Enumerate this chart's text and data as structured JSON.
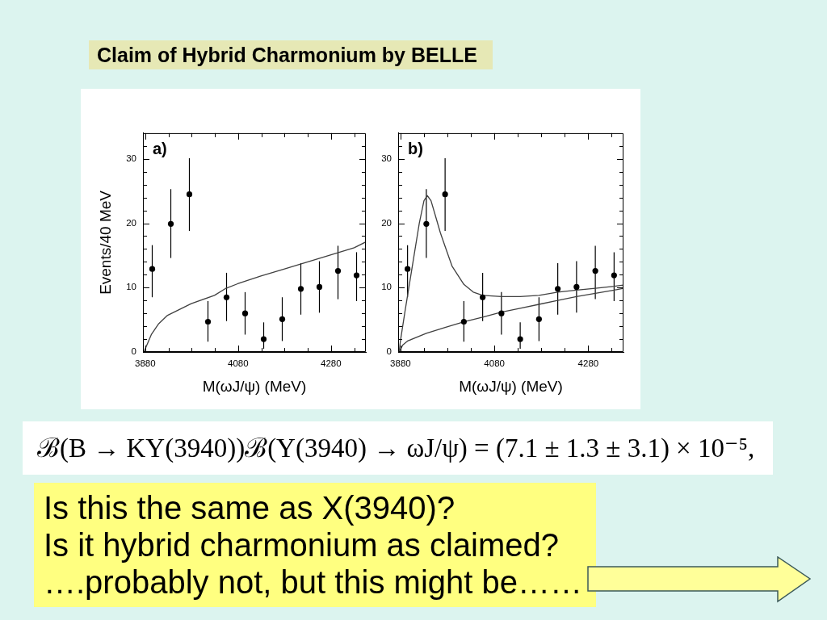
{
  "chart_data": [
    {
      "type": "scatter",
      "title": "Claim of Hybrid Charmonium by BELLE",
      "xlabel": "M(ωJ/ψ) (MeV)",
      "ylabel": "Events/40 MeV",
      "annotations": [
        "a)"
      ],
      "xlim": [
        3875,
        4355
      ],
      "ylim": [
        0,
        34
      ],
      "xticks": [
        3880,
        {
          "value": 3930,
          "label": null
        },
        {
          "value": 3980,
          "label": null
        },
        {
          "value": 4030,
          "label": null
        },
        4080,
        {
          "value": 4130,
          "label": null
        },
        {
          "value": 4180,
          "label": null
        },
        {
          "value": 4230,
          "label": null
        },
        4280,
        {
          "value": 4330,
          "label": null
        }
      ],
      "yticks": [
        0,
        {
          "value": 2,
          "label": null
        },
        {
          "value": 4,
          "label": null
        },
        {
          "value": 6,
          "label": null
        },
        {
          "value": 8,
          "label": null
        },
        10,
        {
          "value": 12,
          "label": null
        },
        {
          "value": 14,
          "label": null
        },
        {
          "value": 16,
          "label": null
        },
        {
          "value": 18,
          "label": null
        },
        20,
        {
          "value": 22,
          "label": null
        },
        {
          "value": 24,
          "label": null
        },
        {
          "value": 26,
          "label": null
        },
        {
          "value": 28,
          "label": null
        },
        30,
        {
          "value": 32,
          "label": null
        }
      ],
      "grid": false,
      "legend": false,
      "marker": "circle",
      "series": [
        {
          "type": "scatter",
          "color": "#000000",
          "x": [
            3895,
            3935,
            3975,
            4015,
            4055,
            4095,
            4135,
            4175,
            4215,
            4255,
            4295,
            4335
          ],
          "values": [
            12.9,
            19.9,
            24.5,
            4.7,
            8.5,
            6.0,
            2.0,
            5.1,
            9.8,
            10.1,
            12.6,
            11.9
          ],
          "errors": [
            [
              8.5,
              16.6
            ],
            [
              14.6,
              25.3
            ],
            [
              18.8,
              30.1
            ],
            [
              1.6,
              7.9
            ],
            [
              4.8,
              12.3
            ],
            [
              2.7,
              9.3
            ],
            [
              0.5,
              4.6
            ],
            [
              1.7,
              8.5
            ],
            [
              5.8,
              13.8
            ],
            [
              6.1,
              14.1
            ],
            [
              8.2,
              16.5
            ],
            [
              7.9,
              15.5
            ]
          ]
        },
        {
          "type": "line",
          "color": "#404040",
          "marker": "none",
          "x": [
            3877,
            3886,
            3893,
            3909,
            3928,
            3979,
            4029,
            4054,
            4079,
            4129,
            4180,
            4230,
            4280,
            4330,
            4355
          ],
          "values": [
            0,
            1.5,
            2.7,
            4.4,
            5.7,
            7.5,
            8.8,
            9.9,
            10.6,
            11.8,
            12.9,
            14.0,
            15.1,
            16.2,
            17.1
          ]
        }
      ]
    },
    {
      "type": "scatter",
      "xlabel": "M(ωJ/ψ) (MeV)",
      "annotations": [
        "b)"
      ],
      "xlim": [
        3875,
        4355
      ],
      "ylim": [
        0,
        34
      ],
      "xticks": [
        3880,
        {
          "value": 3930,
          "label": null
        },
        {
          "value": 3980,
          "label": null
        },
        {
          "value": 4030,
          "label": null
        },
        4080,
        {
          "value": 4130,
          "label": null
        },
        {
          "value": 4180,
          "label": null
        },
        {
          "value": 4230,
          "label": null
        },
        4280,
        {
          "value": 4330,
          "label": null
        }
      ],
      "yticks": [
        0,
        {
          "value": 2,
          "label": null
        },
        {
          "value": 4,
          "label": null
        },
        {
          "value": 6,
          "label": null
        },
        {
          "value": 8,
          "label": null
        },
        10,
        {
          "value": 12,
          "label": null
        },
        {
          "value": 14,
          "label": null
        },
        {
          "value": 16,
          "label": null
        },
        {
          "value": 18,
          "label": null
        },
        20,
        {
          "value": 22,
          "label": null
        },
        {
          "value": 24,
          "label": null
        },
        {
          "value": 26,
          "label": null
        },
        {
          "value": 28,
          "label": null
        },
        30,
        {
          "value": 32,
          "label": null
        }
      ],
      "grid": false,
      "legend": false,
      "marker": "circle",
      "series": [
        {
          "type": "scatter",
          "color": "#000000",
          "x": [
            3895,
            3935,
            3975,
            4015,
            4055,
            4095,
            4135,
            4175,
            4215,
            4255,
            4295,
            4335
          ],
          "values": [
            12.9,
            19.9,
            24.5,
            4.7,
            8.5,
            6.0,
            2.0,
            5.1,
            9.8,
            10.1,
            12.6,
            11.9
          ],
          "errors": [
            [
              8.5,
              16.6
            ],
            [
              14.6,
              25.3
            ],
            [
              18.8,
              30.1
            ],
            [
              1.6,
              7.9
            ],
            [
              4.8,
              12.3
            ],
            [
              2.7,
              9.3
            ],
            [
              0.5,
              4.6
            ],
            [
              1.7,
              8.5
            ],
            [
              5.8,
              13.8
            ],
            [
              6.1,
              14.1
            ],
            [
              8.2,
              16.5
            ],
            [
              7.9,
              15.5
            ]
          ]
        },
        {
          "type": "line",
          "color": "#404040",
          "marker": "none",
          "x": [
            3877,
            3880,
            3890,
            3900,
            3910,
            3920,
            3930,
            3937,
            3945,
            3955,
            3965,
            3975,
            3990,
            4015,
            4035,
            4055,
            4095,
            4135,
            4175,
            4215,
            4255,
            4295,
            4335,
            4355
          ],
          "values": [
            0,
            1.8,
            6.5,
            11,
            15.5,
            20,
            23.5,
            24.3,
            23.5,
            21,
            18.5,
            16.4,
            13.3,
            10.5,
            9.3,
            8.8,
            8.6,
            8.6,
            8.8,
            9.3,
            9.6,
            9.9,
            10.2,
            10.4
          ]
        },
        {
          "type": "line",
          "color": "#404040",
          "marker": "none",
          "x": [
            3877,
            3885,
            3895,
            3935,
            3975,
            4015,
            4055,
            4095,
            4135,
            4175,
            4215,
            4255,
            4295,
            4335,
            4355
          ],
          "values": [
            0,
            1.1,
            1.7,
            2.9,
            3.8,
            4.7,
            5.4,
            6.2,
            6.8,
            7.4,
            8.0,
            8.6,
            9.1,
            9.6,
            9.9
          ]
        }
      ]
    },
    {
      "type": "other",
      "annotations": [
        "ℬ(B → KY(3940))ℬ(Y(3940) → ωJ/ψ) = (7.1 ± 1.3 ± 3.1) × 10⁻⁵,",
        "Is this the same as X(3940)?",
        "Is it hybrid charmonium as claimed?",
        "….probably not, but this might be……"
      ]
    }
  ]
}
